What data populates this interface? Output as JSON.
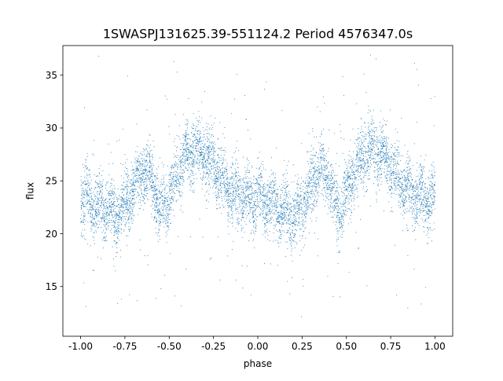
{
  "chart_data": {
    "type": "scatter",
    "title": "1SWASPJ131625.39-551124.2 Period 4576347.0s",
    "xlabel": "phase",
    "ylabel": "flux",
    "xlim": [
      -1.1,
      1.1
    ],
    "ylim": [
      10.3,
      37.8
    ],
    "x_ticks": [
      "-1.00",
      "-0.75",
      "-0.50",
      "-0.25",
      "0.00",
      "0.25",
      "0.50",
      "0.75",
      "1.00"
    ],
    "y_ticks": [
      "15",
      "20",
      "25",
      "30",
      "35"
    ],
    "grid": false,
    "legend": "none",
    "marker_color": "#1f77b4",
    "phase_range": [
      -1.0,
      1.0
    ],
    "profile": [
      {
        "phase": 0.0,
        "flux": 23.5
      },
      {
        "phase": 0.05,
        "flux": 23.2
      },
      {
        "phase": 0.1,
        "flux": 22.6
      },
      {
        "phase": 0.15,
        "flux": 22.5
      },
      {
        "phase": 0.2,
        "flux": 21.5
      },
      {
        "phase": 0.25,
        "flux": 22.5
      },
      {
        "phase": 0.3,
        "flux": 24.5
      },
      {
        "phase": 0.35,
        "flux": 26.0
      },
      {
        "phase": 0.4,
        "flux": 25.5
      },
      {
        "phase": 0.45,
        "flux": 22.0
      },
      {
        "phase": 0.5,
        "flux": 23.5
      },
      {
        "phase": 0.55,
        "flux": 26.0
      },
      {
        "phase": 0.6,
        "flux": 27.5
      },
      {
        "phase": 0.65,
        "flux": 28.0
      },
      {
        "phase": 0.7,
        "flux": 27.5
      },
      {
        "phase": 0.75,
        "flux": 26.5
      },
      {
        "phase": 0.8,
        "flux": 25.0
      },
      {
        "phase": 0.85,
        "flux": 24.0
      },
      {
        "phase": 0.9,
        "flux": 23.5
      },
      {
        "phase": 0.95,
        "flux": 23.3
      },
      {
        "phase": 1.0,
        "flux": 23.5
      }
    ]
  }
}
